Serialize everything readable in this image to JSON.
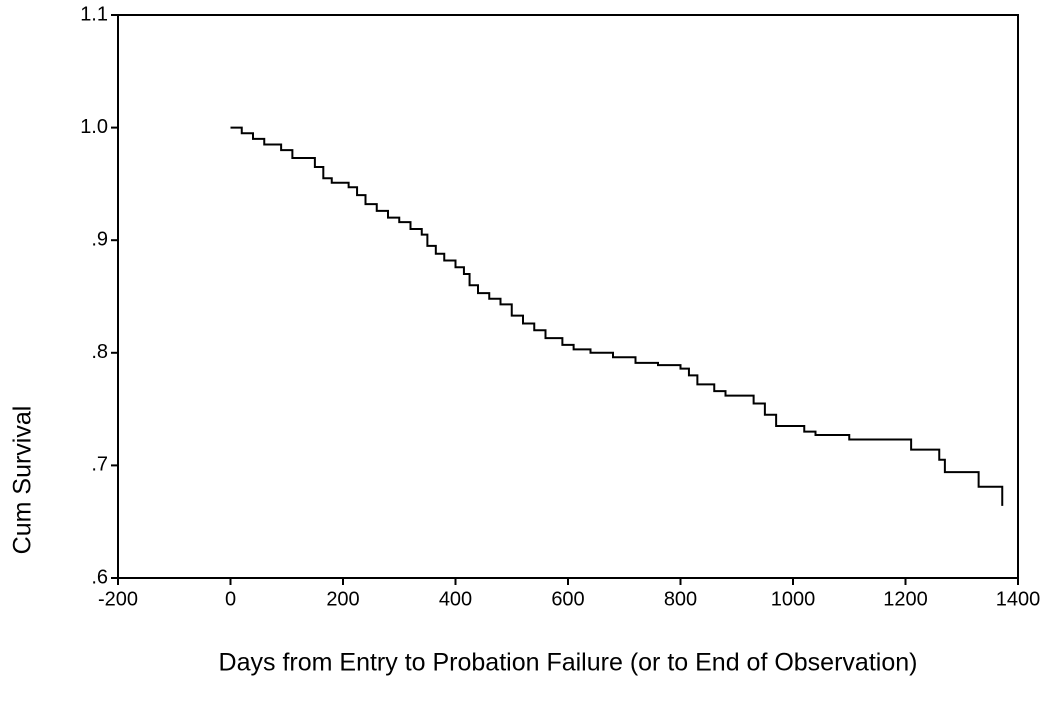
{
  "chart_data": {
    "type": "step",
    "x_label": "Days from Entry to Probation Failure (or to End of Observation)",
    "y_label": "Cum Survival",
    "color": "#000000",
    "x": [
      0,
      20,
      40,
      60,
      90,
      110,
      150,
      165,
      180,
      210,
      225,
      240,
      260,
      280,
      300,
      320,
      340,
      350,
      365,
      380,
      400,
      415,
      425,
      440,
      460,
      480,
      500,
      520,
      540,
      560,
      590,
      610,
      640,
      680,
      720,
      760,
      800,
      815,
      830,
      860,
      880,
      930,
      950,
      970,
      1020,
      1040,
      1100,
      1210,
      1260,
      1270,
      1330,
      1372
    ],
    "values": [
      1.0,
      0.995,
      0.99,
      0.985,
      0.98,
      0.973,
      0.965,
      0.955,
      0.951,
      0.947,
      0.94,
      0.932,
      0.926,
      0.92,
      0.916,
      0.91,
      0.905,
      0.895,
      0.888,
      0.882,
      0.876,
      0.87,
      0.86,
      0.853,
      0.848,
      0.843,
      0.833,
      0.826,
      0.82,
      0.813,
      0.807,
      0.803,
      0.8,
      0.796,
      0.791,
      0.789,
      0.786,
      0.78,
      0.772,
      0.766,
      0.762,
      0.755,
      0.745,
      0.735,
      0.73,
      0.727,
      0.723,
      0.714,
      0.705,
      0.694,
      0.681,
      0.664
    ],
    "xlim": [
      -200,
      1400
    ],
    "xticks": [
      -200,
      0,
      200,
      400,
      600,
      800,
      1000,
      1200,
      1400
    ],
    "ylim": [
      0.6,
      1.1
    ],
    "yticks": [
      {
        "value": 0.6,
        "label": ".6"
      },
      {
        "value": 0.7,
        "label": ".7"
      },
      {
        "value": 0.8,
        "label": ".8"
      },
      {
        "value": 0.9,
        "label": ".9"
      },
      {
        "value": 1.0,
        "label": "1.0"
      },
      1.1
    ],
    "grid": false
  }
}
